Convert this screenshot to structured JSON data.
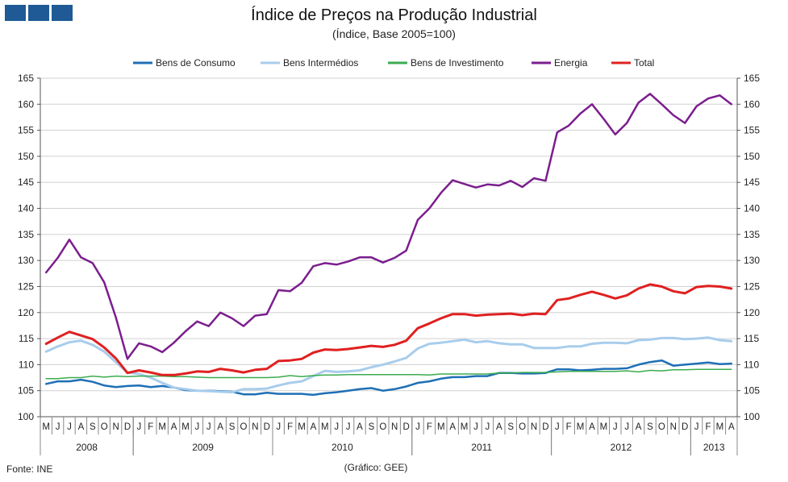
{
  "header": {
    "title": "Índice de Preços na Produção Industrial",
    "subtitle": "(Índice,  Base 2005=100)"
  },
  "footer": {
    "source": "Fonte: INE",
    "credit": "(Gráfico:  GEE)"
  },
  "colors": {
    "logo": "#1f5a96"
  },
  "chart_data": {
    "type": "line",
    "title": "Índice de Preços na Produção Industrial",
    "subtitle": "(Índice,  Base 2005=100)",
    "xlabel": "",
    "ylabel": "",
    "ylim": [
      100,
      165
    ],
    "yticks": [
      100,
      105,
      110,
      115,
      120,
      125,
      130,
      135,
      140,
      145,
      150,
      155,
      160,
      165
    ],
    "grid": "horizontal",
    "legend_position": "top",
    "categories": [
      "M",
      "J",
      "J",
      "A",
      "S",
      "O",
      "N",
      "D",
      "J",
      "F",
      "M",
      "A",
      "M",
      "J",
      "J",
      "A",
      "S",
      "O",
      "N",
      "D",
      "J",
      "F",
      "M",
      "A",
      "M",
      "J",
      "J",
      "A",
      "S",
      "O",
      "N",
      "D",
      "J",
      "F",
      "M",
      "A",
      "M",
      "J",
      "J",
      "A",
      "S",
      "O",
      "N",
      "D",
      "J",
      "F",
      "M",
      "A",
      "M",
      "J",
      "J",
      "A",
      "S",
      "O",
      "N",
      "D",
      "J",
      "F",
      "M",
      "A"
    ],
    "years": [
      {
        "label": "2008",
        "start": 0,
        "count": 8
      },
      {
        "label": "2009",
        "start": 8,
        "count": 12
      },
      {
        "label": "2010",
        "start": 20,
        "count": 12
      },
      {
        "label": "2011",
        "start": 32,
        "count": 12
      },
      {
        "label": "2012",
        "start": 44,
        "count": 12
      },
      {
        "label": "2013",
        "start": 56,
        "count": 4
      }
    ],
    "series": [
      {
        "name": "Bens de Consumo",
        "color": "#1f6fb5",
        "width": 2.5,
        "values": [
          106.3,
          106.8,
          106.8,
          107.1,
          106.7,
          106.0,
          105.7,
          105.9,
          106.0,
          105.7,
          105.9,
          105.6,
          105.1,
          105.0,
          105.0,
          104.9,
          104.8,
          104.3,
          104.3,
          104.6,
          104.4,
          104.4,
          104.4,
          104.2,
          104.5,
          104.7,
          105.0,
          105.3,
          105.5,
          105.0,
          105.3,
          105.8,
          106.5,
          106.8,
          107.3,
          107.6,
          107.6,
          107.8,
          107.8,
          108.4,
          108.4,
          108.3,
          108.3,
          108.4,
          109.1,
          109.1,
          108.9,
          109.0,
          109.2,
          109.2,
          109.3,
          110.0,
          110.5,
          110.8,
          109.8,
          110.0,
          110.2,
          110.4,
          110.1,
          110.2
        ]
      },
      {
        "name": "Bens Intermédios",
        "color": "#a8cdec",
        "width": 3,
        "values": [
          112.5,
          113.5,
          114.3,
          114.6,
          113.8,
          112.5,
          110.5,
          108.5,
          108.2,
          107.5,
          106.5,
          105.6,
          105.3,
          105.0,
          104.9,
          104.8,
          104.7,
          105.3,
          105.3,
          105.4,
          106.0,
          106.5,
          106.8,
          107.8,
          108.8,
          108.6,
          108.7,
          108.9,
          109.5,
          110.0,
          110.6,
          111.3,
          113.1,
          114.0,
          114.2,
          114.5,
          114.8,
          114.3,
          114.5,
          114.1,
          113.9,
          113.9,
          113.2,
          113.2,
          113.2,
          113.5,
          113.5,
          114.0,
          114.2,
          114.2,
          114.1,
          114.7,
          114.8,
          115.1,
          115.1,
          114.9,
          115.0,
          115.2,
          114.7,
          114.5
        ]
      },
      {
        "name": "Bens de Investimento",
        "color": "#3bab4f",
        "width": 1.5,
        "values": [
          107.3,
          107.3,
          107.5,
          107.5,
          107.8,
          107.6,
          107.8,
          107.7,
          107.8,
          107.8,
          107.8,
          107.7,
          107.7,
          107.6,
          107.5,
          107.5,
          107.5,
          107.5,
          107.5,
          107.5,
          107.6,
          107.9,
          107.7,
          107.9,
          108.0,
          108.0,
          108.1,
          108.1,
          108.1,
          108.1,
          108.1,
          108.1,
          108.1,
          108.0,
          108.2,
          108.2,
          108.2,
          108.2,
          108.2,
          108.4,
          108.4,
          108.5,
          108.5,
          108.5,
          108.6,
          108.7,
          108.7,
          108.7,
          108.7,
          108.7,
          108.8,
          108.6,
          108.9,
          108.8,
          109.0,
          109.0,
          109.1,
          109.1,
          109.1,
          109.1
        ]
      },
      {
        "name": "Energia",
        "color": "#7b1e8e",
        "width": 2.5,
        "values": [
          127.7,
          130.5,
          134.0,
          130.6,
          129.5,
          125.8,
          119.1,
          111.1,
          114.1,
          113.5,
          112.4,
          114.2,
          116.4,
          118.3,
          117.4,
          120.0,
          118.9,
          117.4,
          119.4,
          119.7,
          124.3,
          124.1,
          125.7,
          128.9,
          129.5,
          129.2,
          129.8,
          130.6,
          130.6,
          129.6,
          130.5,
          131.9,
          137.8,
          140.0,
          143.0,
          145.4,
          144.7,
          144.0,
          144.6,
          144.4,
          145.3,
          144.1,
          145.8,
          145.3,
          154.6,
          155.9,
          158.2,
          160.0,
          157.2,
          154.2,
          156.4,
          160.3,
          162.0,
          160.0,
          157.9,
          156.4,
          159.6,
          161.1,
          161.7,
          160.0
        ]
      },
      {
        "name": "Total",
        "color": "#e02020",
        "width": 3,
        "values": [
          114.0,
          115.2,
          116.3,
          115.6,
          114.9,
          113.3,
          111.2,
          108.4,
          108.9,
          108.5,
          108.0,
          108.0,
          108.3,
          108.7,
          108.6,
          109.2,
          108.9,
          108.5,
          109.0,
          109.2,
          110.7,
          110.8,
          111.1,
          112.3,
          112.9,
          112.8,
          113.0,
          113.3,
          113.6,
          113.4,
          113.8,
          114.6,
          117.0,
          117.9,
          118.9,
          119.7,
          119.7,
          119.4,
          119.6,
          119.7,
          119.8,
          119.5,
          119.8,
          119.7,
          122.4,
          122.7,
          123.4,
          124.0,
          123.4,
          122.7,
          123.3,
          124.6,
          125.4,
          125.0,
          124.1,
          123.7,
          124.9,
          125.1,
          125.0,
          124.6
        ]
      }
    ]
  }
}
